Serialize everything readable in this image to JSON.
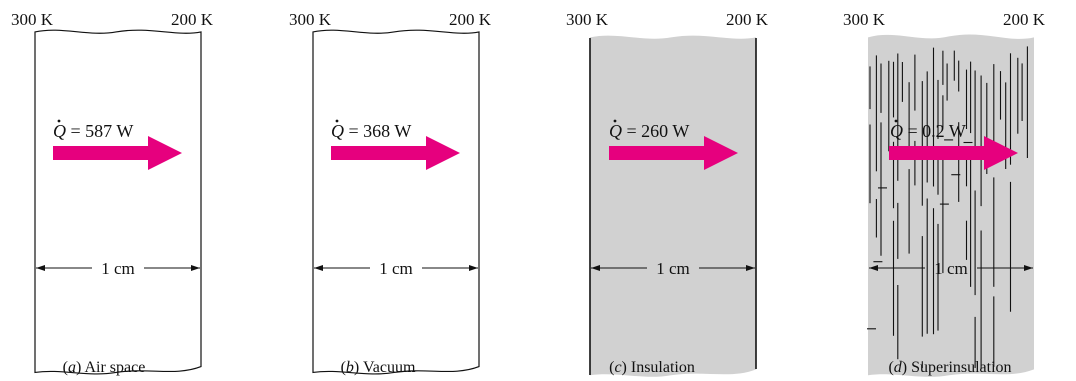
{
  "panels": [
    {
      "temp_left": "300 K",
      "temp_right": "200 K",
      "q_symbol": "Q",
      "q_value": " = 587 W",
      "dimension": "1 cm",
      "caption_letter": "a",
      "caption_text": " Air space",
      "material": "air",
      "fill_color": "#ffffff"
    },
    {
      "temp_left": "300 K",
      "temp_right": "200 K",
      "q_symbol": "Q",
      "q_value": " = 368 W",
      "dimension": "1 cm",
      "caption_letter": "b",
      "caption_text": " Vacuum",
      "material": "vacuum",
      "fill_color": "#ffffff"
    },
    {
      "temp_left": "300 K",
      "temp_right": "200 K",
      "q_symbol": "Q",
      "q_value": " = 260 W",
      "dimension": "1 cm",
      "caption_letter": "c",
      "caption_text": " Insulation",
      "material": "insulation",
      "fill_color": "#d1d1d1"
    },
    {
      "temp_left": "300 K",
      "temp_right": "200 K",
      "q_symbol": "Q",
      "q_value": " = 0.2 W",
      "dimension": "1 cm",
      "caption_letter": "d",
      "caption_text": " Superinsulation",
      "material": "superinsulation",
      "fill_color": "#d1d1d1"
    }
  ],
  "colors": {
    "arrow": "#e6007e",
    "outline": "#111111"
  }
}
